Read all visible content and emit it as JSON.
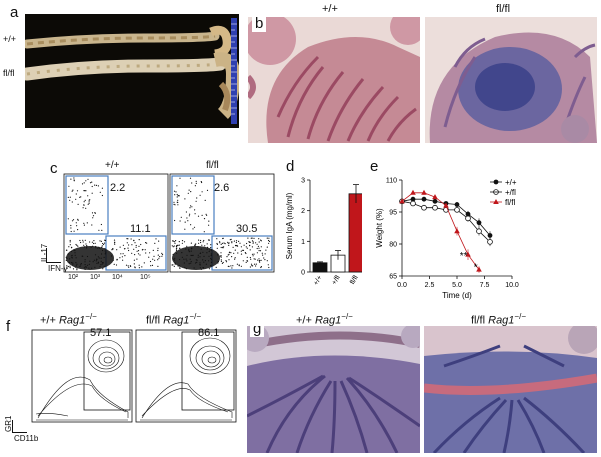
{
  "panels": {
    "a": {
      "letter": "a",
      "rows": [
        "+/+",
        "fl/fl"
      ]
    },
    "b": {
      "letter": "b",
      "left": "+/+",
      "right": "fl/fl"
    },
    "c": {
      "letter": "c",
      "left": "+/+",
      "right": "fl/fl",
      "left_values": {
        "upper": "2.2",
        "lower": "11.1"
      },
      "right_values": {
        "upper": "2.6",
        "lower": "30.5"
      },
      "y_axis": "IL-17",
      "x_axis": "IFN-γ",
      "tick_labels": [
        "10²",
        "10³",
        "10⁴",
        "10⁵"
      ]
    },
    "d": {
      "letter": "d"
    },
    "e": {
      "letter": "e"
    },
    "f": {
      "letter": "f",
      "left_prefix": "+/+ ",
      "right_prefix": "fl/fl ",
      "gene": "Rag1",
      "sup": "−/−",
      "left_value": "57.1",
      "right_value": "86.1",
      "y_axis": "GR1",
      "x_axis": "CD11b"
    },
    "g": {
      "letter": "g",
      "left_prefix": "+/+ ",
      "right_prefix": "fl/fl ",
      "gene": "Rag1",
      "sup": "−/−"
    }
  },
  "chart_data": [
    {
      "id": "d",
      "type": "bar",
      "ylabel": "Serum IgA (mg/ml)",
      "categories": [
        "+/+",
        "+/fl",
        "fl/fl"
      ],
      "values": [
        0.3,
        0.55,
        2.55
      ],
      "errors": [
        0.03,
        0.15,
        0.3
      ],
      "colors": [
        "#111111",
        "#ffffff",
        "#c0161b"
      ],
      "ylim": [
        0,
        3
      ],
      "yticks": [
        "0",
        "1",
        "2",
        "3"
      ]
    },
    {
      "id": "e",
      "type": "line",
      "xlabel": "Time (d)",
      "ylabel": "Weight (%)",
      "xlim": [
        0,
        10
      ],
      "ylim": [
        65,
        110
      ],
      "xticks": [
        "0.0",
        "2.5",
        "5.0",
        "7.5",
        "10.0"
      ],
      "yticks": [
        "65",
        "80",
        "95",
        "110"
      ],
      "annotations": [
        "**",
        "*"
      ],
      "series": [
        {
          "name": "+/+",
          "marker": "filled-circle",
          "color": "#111111",
          "x": [
            0,
            1,
            2,
            3,
            4,
            5,
            6,
            7,
            8
          ],
          "y": [
            100,
            101,
            101,
            100,
            99,
            98.5,
            94,
            90,
            84
          ],
          "err": [
            0.5,
            0.5,
            0.8,
            1,
            1,
            1.2,
            1.5,
            2,
            2
          ]
        },
        {
          "name": "+/fl",
          "marker": "open-circle",
          "color": "#111111",
          "x": [
            0,
            1,
            2,
            3,
            4,
            5,
            6,
            7,
            8
          ],
          "y": [
            100,
            99,
            97,
            97,
            96,
            96,
            92,
            86,
            81
          ],
          "err": [
            0.5,
            0.8,
            1,
            1,
            1.2,
            1.2,
            1.5,
            2,
            2
          ]
        },
        {
          "name": "fl/fl",
          "marker": "filled-triangle",
          "color": "#c0161b",
          "x": [
            0,
            1,
            2,
            3,
            4,
            5,
            6,
            7
          ],
          "y": [
            100,
            104,
            104,
            102,
            98,
            86,
            75,
            68
          ],
          "err": [
            0.5,
            0.8,
            1,
            1,
            1.2,
            2,
            2.5,
            1.5
          ]
        }
      ]
    }
  ]
}
